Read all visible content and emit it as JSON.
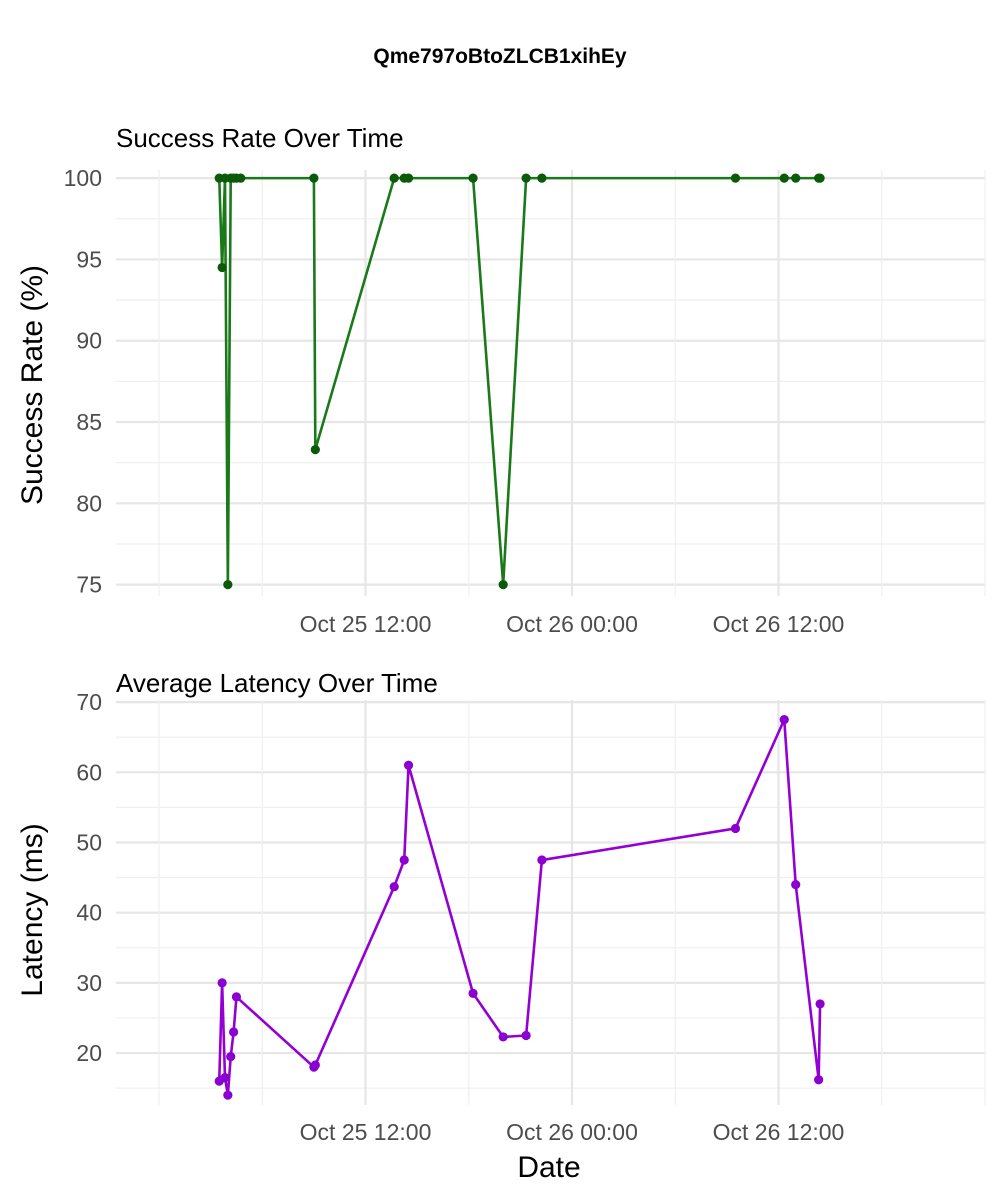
{
  "figure_title": "Qme797oBtoZLCB1xihEy",
  "colors": {
    "success": "#1a7a1a",
    "success_point": "#0a5a0a",
    "latency": "#9400d3",
    "latency_point": "#8a00d0"
  },
  "chart_data": [
    {
      "type": "line",
      "title": "Success Rate Over Time",
      "xlabel": "",
      "ylabel": "Success Rate (%)",
      "x_ticks": [
        "Oct 25 12:00",
        "Oct 26 00:00",
        "Oct 26 12:00"
      ],
      "y_ticks": [
        "75",
        "80",
        "85",
        "90",
        "95",
        "100"
      ],
      "ylim": [
        74.3,
        100.5
      ],
      "xlim": [
        "2023-10-24 21:30",
        "2023-10-27 00:00"
      ],
      "grid": true,
      "series": [
        {
          "x": [
            "2023-10-25 03:30",
            "2023-10-25 03:40",
            "2023-10-25 03:50",
            "2023-10-25 04:00",
            "2023-10-25 04:10",
            "2023-10-25 04:20",
            "2023-10-25 04:30",
            "2023-10-25 04:45",
            "2023-10-25 09:00",
            "2023-10-25 09:05",
            "2023-10-25 13:40",
            "2023-10-25 14:15",
            "2023-10-25 14:30",
            "2023-10-25 18:15",
            "2023-10-25 20:00",
            "2023-10-25 21:20",
            "2023-10-25 22:15",
            "2023-10-26 09:30",
            "2023-10-26 12:20",
            "2023-10-26 13:00",
            "2023-10-26 14:20",
            "2023-10-26 14:25"
          ],
          "y": [
            100,
            94.5,
            100,
            75,
            100,
            100,
            100,
            100,
            100,
            83.3,
            100,
            100,
            100,
            100,
            75,
            100,
            100,
            100,
            100,
            100,
            100,
            100
          ]
        }
      ]
    },
    {
      "type": "line",
      "title": "Average Latency Over Time",
      "xlabel": "Date",
      "ylabel": "Latency (ms)",
      "x_ticks": [
        "Oct 25 12:00",
        "Oct 26 00:00",
        "Oct 26 12:00"
      ],
      "y_ticks": [
        "20",
        "30",
        "40",
        "50",
        "60",
        "70"
      ],
      "ylim": [
        12.6,
        70.3
      ],
      "xlim": [
        "2023-10-24 21:30",
        "2023-10-27 00:00"
      ],
      "grid": true,
      "series": [
        {
          "x": [
            "2023-10-25 03:30",
            "2023-10-25 03:40",
            "2023-10-25 03:50",
            "2023-10-25 04:00",
            "2023-10-25 04:10",
            "2023-10-25 04:20",
            "2023-10-25 04:30",
            "2023-10-25 09:00",
            "2023-10-25 09:05",
            "2023-10-25 13:40",
            "2023-10-25 14:15",
            "2023-10-25 14:30",
            "2023-10-25 18:15",
            "2023-10-25 20:00",
            "2023-10-25 21:20",
            "2023-10-25 22:15",
            "2023-10-26 09:30",
            "2023-10-26 12:20",
            "2023-10-26 13:00",
            "2023-10-26 14:20",
            "2023-10-26 14:25"
          ],
          "y": [
            16,
            30,
            16.5,
            14,
            19.5,
            23,
            28,
            18,
            18.3,
            43.7,
            47.5,
            61,
            28.5,
            22.3,
            22.5,
            47.5,
            52,
            67.5,
            44,
            16.2,
            27
          ]
        }
      ]
    }
  ]
}
